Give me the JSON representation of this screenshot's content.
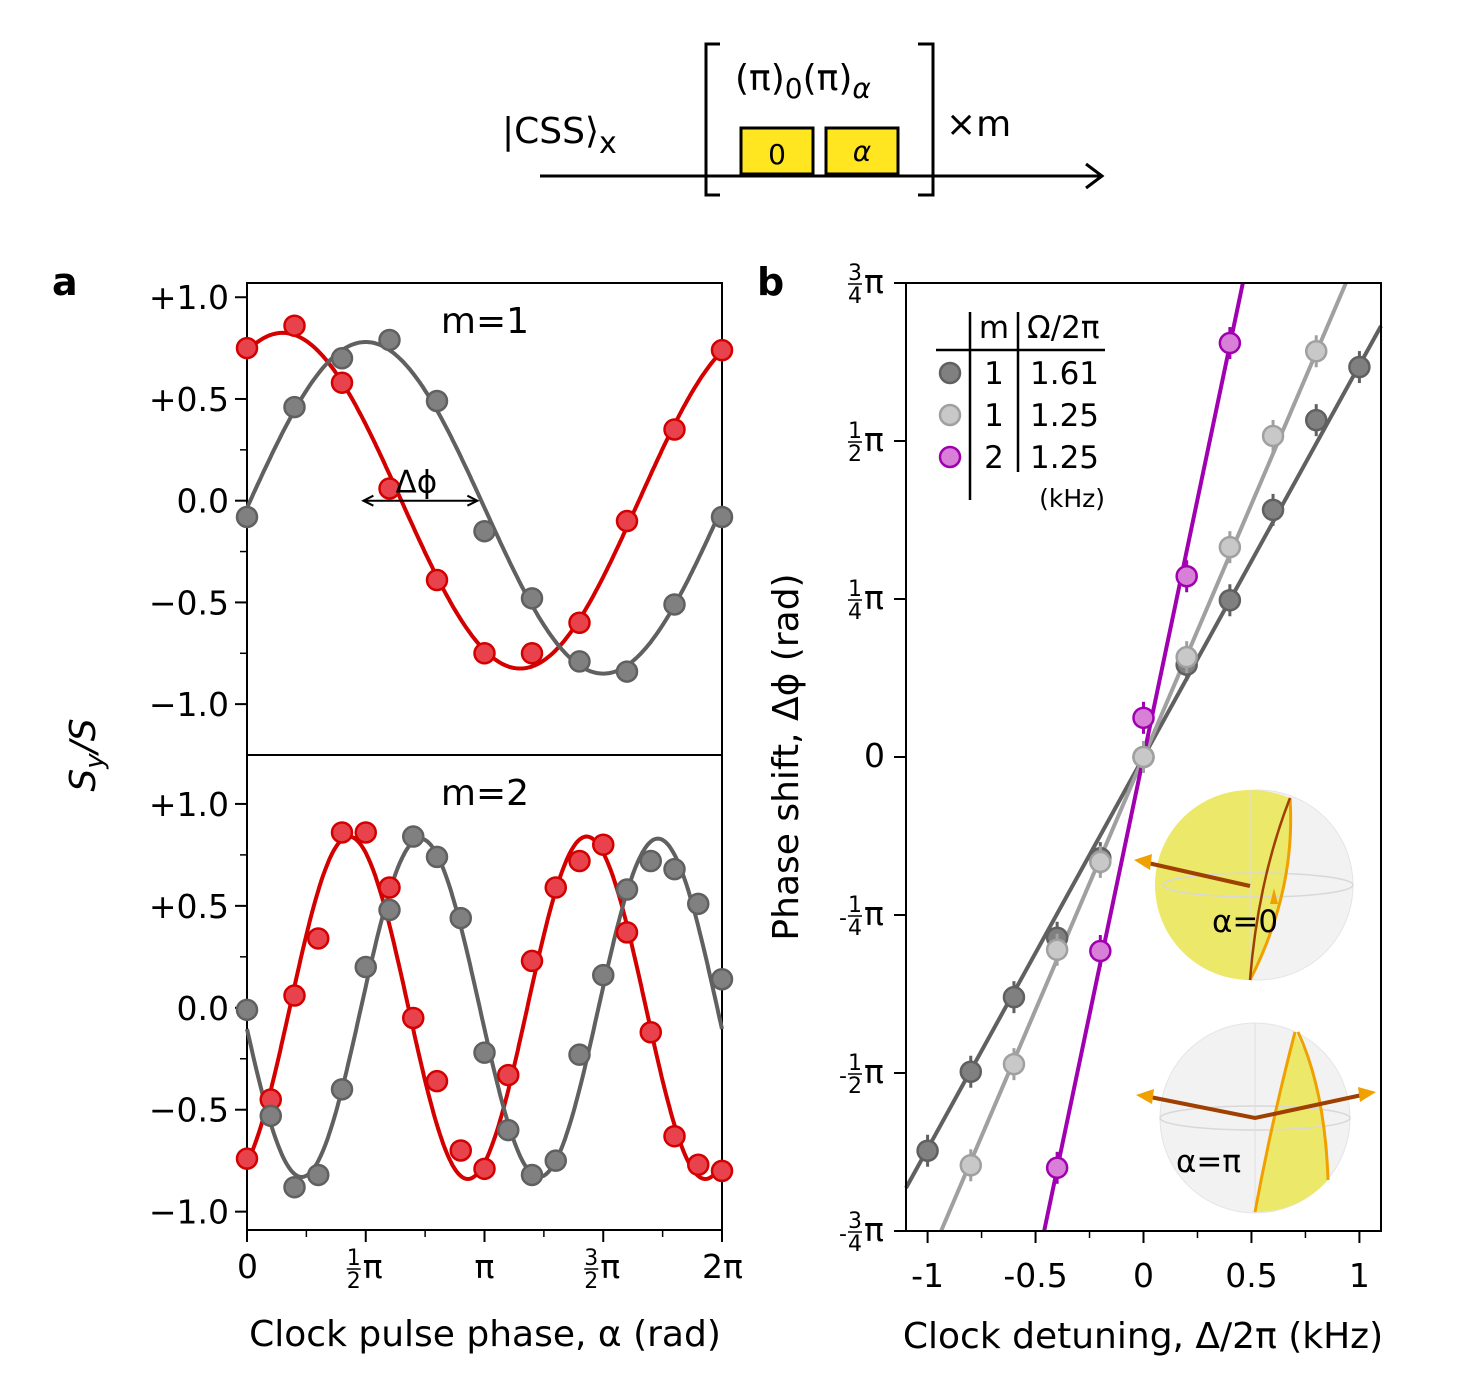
{
  "sequence_diagram": {
    "state_main": "|CSS⟩",
    "state_sub": "x",
    "pulse_title_a": "(π)",
    "pulse_title_a_sub": "0",
    "pulse_title_b": "(π)",
    "pulse_title_b_sub": "α",
    "pulse_1_label": "0",
    "pulse_2_label": "α",
    "repeat_label": "×m",
    "pulse_color": "#ffe620"
  },
  "chart_data": [
    {
      "panel": "a",
      "type": "scatter",
      "xlabel": "Clock pulse phase, α  (rad)",
      "ylabel": {
        "main": "S",
        "sub": "y",
        "rest": "/S"
      },
      "x_unit": "π",
      "xlim": [
        0,
        2
      ],
      "x_ticks": [
        {
          "value": 0,
          "pre": "",
          "num": "",
          "den": "",
          "text": "0"
        },
        {
          "value": 0.5,
          "pre": "",
          "num": "1",
          "den": "2",
          "text": "π"
        },
        {
          "value": 1,
          "pre": "",
          "num": "",
          "den": "",
          "text": "π"
        },
        {
          "value": 1.5,
          "pre": "",
          "num": "3",
          "den": "2",
          "text": "π"
        },
        {
          "value": 2,
          "pre": "",
          "num": "",
          "den": "",
          "text": "2π"
        }
      ],
      "y_ticks": [
        {
          "value": 1,
          "label": "+1.0"
        },
        {
          "value": 0.5,
          "label": "+0.5"
        },
        {
          "value": 0,
          "label": "0.0"
        },
        {
          "value": -0.5,
          "label": "−0.5"
        },
        {
          "value": -1,
          "label": "−1.0"
        }
      ],
      "subplots": [
        {
          "title": "m=1",
          "ylim": [
            -1.25,
            1.07
          ],
          "annotation": "Δϕ",
          "annotation_arrow": {
            "y": 0,
            "x_from": 0.49,
            "x_to": 0.97
          },
          "series": [
            {
              "color": "#d40000",
              "fill": "#e8434c",
              "x": [
                0,
                0.2,
                0.4,
                0.6,
                0.8,
                1.0,
                1.2,
                1.4,
                1.6,
                1.8,
                2.0
              ],
              "y": [
                0.75,
                0.86,
                0.58,
                0.06,
                -0.39,
                -0.75,
                -0.75,
                -0.6,
                -0.1,
                0.35,
                0.74
              ],
              "fit": {
                "amplitude": 0.825,
                "frequency": 1,
                "phase_pi": 0.15,
                "offset": 0.0
              }
            },
            {
              "color": "#606060",
              "fill": "#808080",
              "x": [
                0,
                0.2,
                0.4,
                0.6,
                0.8,
                1.0,
                1.2,
                1.4,
                1.6,
                1.8,
                2.0
              ],
              "y": [
                -0.08,
                0.46,
                0.7,
                0.79,
                0.49,
                -0.15,
                -0.48,
                -0.79,
                -0.84,
                -0.51,
                -0.08
              ],
              "fit": {
                "amplitude": 0.815,
                "frequency": 1,
                "phase_pi": 0.5,
                "offset": -0.035
              }
            }
          ]
        },
        {
          "title": "m=2",
          "ylim": [
            -1.09,
            1.24
          ],
          "series": [
            {
              "color": "#d40000",
              "fill": "#e8434c",
              "x": [
                0,
                0.1,
                0.2,
                0.3,
                0.4,
                0.5,
                0.6,
                0.7,
                0.8,
                0.9,
                1.0,
                1.1,
                1.2,
                1.3,
                1.4,
                1.5,
                1.6,
                1.7,
                1.8,
                1.9,
                2.0
              ],
              "y": [
                -0.74,
                -0.45,
                0.06,
                0.34,
                0.86,
                0.86,
                0.59,
                -0.05,
                -0.36,
                -0.7,
                -0.79,
                -0.33,
                0.23,
                0.59,
                0.72,
                0.8,
                0.37,
                -0.12,
                -0.63,
                -0.77,
                -0.8
              ],
              "fit": {
                "amplitude": 0.84,
                "frequency": 2,
                "phase_pi": 0.86,
                "offset": 0.0
              }
            },
            {
              "color": "#606060",
              "fill": "#808080",
              "x": [
                0,
                0.1,
                0.2,
                0.3,
                0.4,
                0.5,
                0.6,
                0.7,
                0.8,
                0.9,
                1.0,
                1.1,
                1.2,
                1.3,
                1.4,
                1.5,
                1.6,
                1.7,
                1.8,
                1.9,
                2.0
              ],
              "y": [
                -0.01,
                -0.53,
                -0.88,
                -0.82,
                -0.4,
                0.2,
                0.48,
                0.84,
                0.74,
                0.44,
                -0.22,
                -0.6,
                -0.82,
                -0.75,
                -0.23,
                0.16,
                0.58,
                0.72,
                0.68,
                0.51,
                0.14
              ],
              "fit": {
                "amplitude": 0.83,
                "frequency": 2,
                "phase_pi": 1.46,
                "offset": 0.0
              }
            }
          ]
        }
      ]
    },
    {
      "panel": "b",
      "type": "scatter",
      "xlabel": "Clock detuning, Δ/2π (kHz)",
      "ylabel": "Phase shift, Δϕ  (rad)",
      "xlim": [
        -1.1,
        1.1
      ],
      "y_unit": "π",
      "ylim": [
        -0.75,
        0.75
      ],
      "x_ticks": [
        {
          "value": -1,
          "label": "-1"
        },
        {
          "value": -0.5,
          "label": "-0.5"
        },
        {
          "value": 0,
          "label": "0"
        },
        {
          "value": 0.5,
          "label": "0.5"
        },
        {
          "value": 1,
          "label": "1"
        }
      ],
      "y_ticks": [
        {
          "value": 0.75,
          "pre": "",
          "num": "3",
          "den": "4",
          "text": "π"
        },
        {
          "value": 0.5,
          "pre": "",
          "num": "1",
          "den": "2",
          "text": "π"
        },
        {
          "value": 0.25,
          "pre": "",
          "num": "1",
          "den": "4",
          "text": "π"
        },
        {
          "value": 0,
          "pre": "",
          "num": "",
          "den": "",
          "text": "0"
        },
        {
          "value": -0.25,
          "pre": "-",
          "num": "1",
          "den": "4",
          "text": "π"
        },
        {
          "value": -0.5,
          "pre": "-",
          "num": "1",
          "den": "2",
          "text": "π"
        },
        {
          "value": -0.75,
          "pre": "-",
          "num": "3",
          "den": "4",
          "text": "π"
        }
      ],
      "legend": {
        "placement": "top-left",
        "header_m": "m",
        "header_omega": "Ω/2π",
        "unit": "(kHz)",
        "rows": [
          {
            "m": "1",
            "omega": "1.61"
          },
          {
            "m": "1",
            "omega": "1.25"
          },
          {
            "m": "2",
            "omega": "1.25"
          }
        ]
      },
      "series": [
        {
          "color": "#606060",
          "fill": "#808080",
          "x": [
            -1.0,
            -0.8,
            -0.6,
            -0.4,
            -0.2,
            0,
            0.2,
            0.4,
            0.6,
            0.8,
            1.0
          ],
          "y": [
            -0.623,
            -0.498,
            -0.38,
            -0.286,
            -0.16,
            0,
            0.146,
            0.248,
            0.391,
            0.533,
            0.617
          ],
          "fit": {
            "slope": 0.62,
            "intercept": 0
          }
        },
        {
          "color": "#a0a0a0",
          "fill": "#c8c8c8",
          "x": [
            -0.8,
            -0.6,
            -0.4,
            -0.2,
            0,
            0.2,
            0.4,
            0.6,
            0.8
          ],
          "y": [
            -0.646,
            -0.486,
            -0.305,
            -0.166,
            0,
            0.158,
            0.332,
            0.508,
            0.642
          ],
          "fit": {
            "slope": 0.8,
            "intercept": 0
          }
        },
        {
          "color": "#a000b0",
          "fill": "#d880d8",
          "x": [
            -0.4,
            -0.2,
            0,
            0.2,
            0.4
          ],
          "y": [
            -0.65,
            -0.307,
            0.062,
            0.286,
            0.655
          ],
          "fit": {
            "slope": 1.63,
            "intercept": 0
          }
        }
      ],
      "insets": [
        {
          "label": "α=0"
        },
        {
          "label": "α=π"
        }
      ]
    }
  ],
  "panel_labels": [
    "a",
    "b"
  ]
}
